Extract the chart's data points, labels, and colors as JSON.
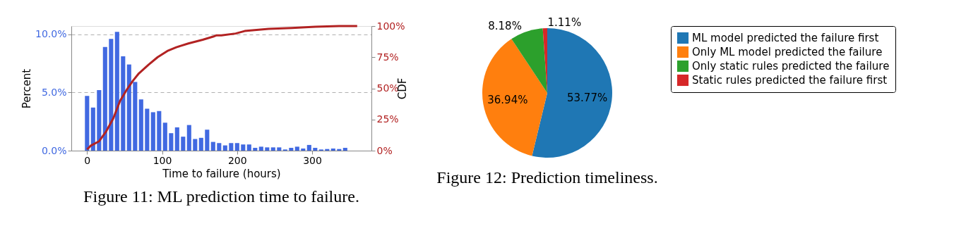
{
  "chart_data": [
    {
      "type": "histogram",
      "xlabel": "Time to failure (hours)",
      "ylabel": "Percent",
      "y2label": "CDF",
      "bins": [
        -4,
        4,
        12,
        20,
        28,
        36,
        44,
        52,
        60,
        68,
        76,
        84,
        92,
        100,
        108,
        116,
        124,
        132,
        140,
        148,
        156,
        164,
        172,
        180,
        188,
        196,
        204,
        212,
        220,
        228,
        236,
        244,
        252,
        260,
        268,
        276,
        284,
        292,
        300,
        308,
        316,
        324,
        332,
        340,
        348
      ],
      "series": [
        {
          "type": "histogram",
          "color": "#4169e1",
          "values": [
            4.7,
            3.7,
            5.2,
            8.9,
            9.6,
            10.2,
            8.1,
            7.4,
            5.9,
            4.4,
            3.6,
            3.3,
            3.4,
            2.4,
            1.5,
            2.0,
            1.2,
            2.2,
            1.0,
            1.1,
            1.8,
            0.75,
            0.65,
            0.45,
            0.65,
            0.65,
            0.53,
            0.53,
            0.24,
            0.34,
            0.28,
            0.28,
            0.28,
            0.1,
            0.24,
            0.34,
            0.18,
            0.49,
            0.24,
            0.1,
            0.14,
            0.18,
            0.14,
            0.24
          ]
        },
        {
          "type": "line",
          "axis": "y2",
          "color": "#b22222",
          "x": [
            0,
            5,
            16,
            25,
            35,
            44,
            53,
            61,
            69,
            82,
            94,
            107,
            119,
            135,
            154,
            168,
            172,
            179,
            198,
            210,
            242,
            273,
            304,
            336,
            360
          ],
          "values": [
            1,
            4,
            7.5,
            15,
            26,
            40,
            49,
            56,
            62,
            69,
            75,
            80,
            83,
            86,
            89,
            91.5,
            92.5,
            92.5,
            94,
            96,
            97.7,
            98.5,
            99.4,
            100,
            100
          ]
        }
      ],
      "xlim": [
        -21,
        379
      ],
      "xticks": [
        0,
        100,
        200,
        300
      ],
      "ylim": [
        0,
        10.7
      ],
      "yticks": [
        {
          "value": 0,
          "label": "0.0%"
        },
        {
          "value": 5,
          "label": "5.0%"
        },
        {
          "value": 10,
          "label": "10.0%"
        }
      ],
      "y2lim": [
        0,
        100
      ],
      "y2ticks": [
        {
          "value": 0,
          "label": "0%"
        },
        {
          "value": 25,
          "label": "25%"
        },
        {
          "value": 50,
          "label": "50%"
        },
        {
          "value": 75,
          "label": "75%"
        },
        {
          "value": 100,
          "label": "100%"
        }
      ],
      "grid": "y",
      "annotations": [
        "Figure 11: ML prediction time to failure."
      ]
    },
    {
      "type": "pie",
      "categories": [
        "ML model predicted the failure first",
        "Only ML model predicted the failure",
        "Only static rules predicted the failure",
        "Static rules predicted the failure first"
      ],
      "values": [
        53.77,
        36.94,
        8.18,
        1.11
      ],
      "colors": [
        "#1f77b4",
        "#ff7f0e",
        "#2ca02c",
        "#d62728"
      ],
      "value_labels": [
        "53.77%",
        "36.94%",
        "8.18%",
        "1.11%"
      ],
      "legend": "right",
      "annotations": [
        "Figure 12: Prediction timeliness."
      ]
    }
  ]
}
